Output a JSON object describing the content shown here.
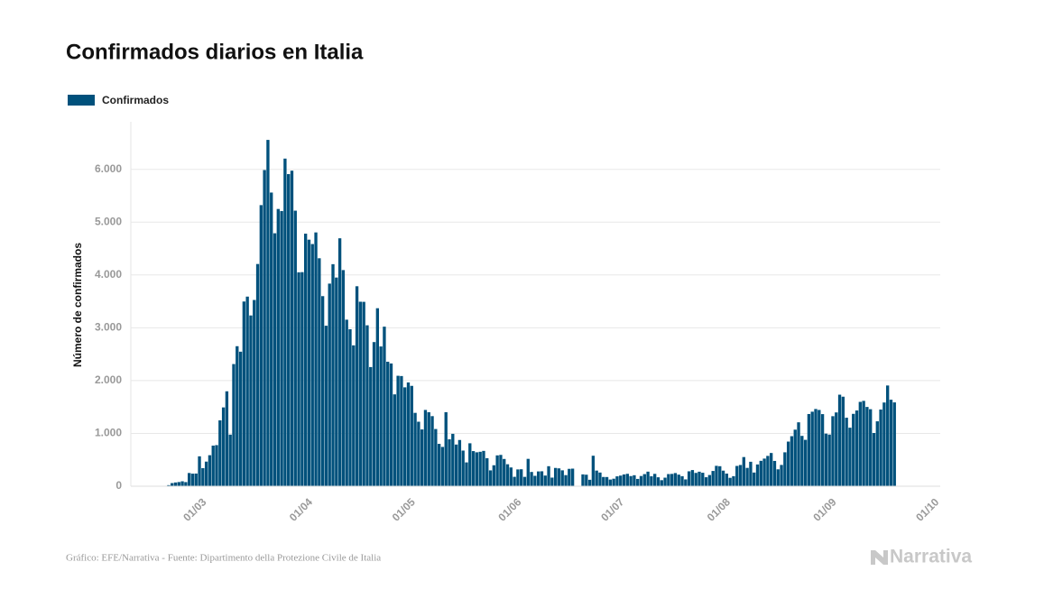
{
  "chart_data": {
    "type": "bar",
    "title": "Confirmados diarios en Italia",
    "y_label": "Número de confirmados",
    "source": "Gráfico: EFE/Narrativa - Fuente: Dipartimento della Protezione Civile de Italia",
    "brand": "Narrativa",
    "legend": "top-left",
    "grid": true,
    "ylim": [
      0,
      6900
    ],
    "yticks": [
      0,
      {
        "value": 1000,
        "label": "1.000"
      },
      {
        "value": 2000,
        "label": "2.000"
      },
      {
        "value": 3000,
        "label": "3.000"
      },
      {
        "value": 4000,
        "label": "4.000"
      },
      {
        "value": 5000,
        "label": "5.000"
      },
      {
        "value": 6000,
        "label": "6.000"
      }
    ],
    "xticks": [
      "01/03",
      "01/04",
      "01/05",
      "01/06",
      "01/07",
      "01/08",
      "01/09",
      "01/10"
    ],
    "categories": [
      "21/02",
      "22/02",
      "23/02",
      "24/02",
      "25/02",
      "26/02",
      "27/02",
      "28/02",
      "29/02",
      "01/03",
      "02/03",
      "03/03",
      "04/03",
      "05/03",
      "06/03",
      "07/03",
      "08/03",
      "09/03",
      "10/03",
      "11/03",
      "12/03",
      "13/03",
      "14/03",
      "15/03",
      "16/03",
      "17/03",
      "18/03",
      "19/03",
      "20/03",
      "21/03",
      "22/03",
      "23/03",
      "24/03",
      "25/03",
      "26/03",
      "27/03",
      "28/03",
      "29/03",
      "30/03",
      "31/03",
      "01/04",
      "02/04",
      "03/04",
      "04/04",
      "05/04",
      "06/04",
      "07/04",
      "08/04",
      "09/04",
      "10/04",
      "11/04",
      "12/04",
      "13/04",
      "14/04",
      "15/04",
      "16/04",
      "17/04",
      "18/04",
      "19/04",
      "20/04",
      "21/04",
      "22/04",
      "23/04",
      "24/04",
      "25/04",
      "26/04",
      "27/04",
      "28/04",
      "29/04",
      "30/04",
      "01/05",
      "02/05",
      "03/05",
      "04/05",
      "05/05",
      "06/05",
      "07/05",
      "08/05",
      "09/05",
      "10/05",
      "11/05",
      "12/05",
      "13/05",
      "14/05",
      "15/05",
      "16/05",
      "17/05",
      "18/05",
      "19/05",
      "20/05",
      "21/05",
      "22/05",
      "23/05",
      "24/05",
      "25/05",
      "26/05",
      "27/05",
      "28/05",
      "29/05",
      "30/05",
      "31/05",
      "01/06",
      "02/06",
      "03/06",
      "04/06",
      "05/06",
      "06/06",
      "07/06",
      "08/06",
      "09/06",
      "10/06",
      "11/06",
      "12/06",
      "13/06",
      "14/06",
      "15/06",
      "16/06",
      "17/06",
      "18/06",
      "19/06",
      "20/06",
      "21/06",
      "22/06",
      "23/06",
      "24/06",
      "25/06",
      "26/06",
      "27/06",
      "28/06",
      "29/06",
      "30/06",
      "01/07",
      "02/07",
      "03/07",
      "04/07",
      "05/07",
      "06/07",
      "07/07",
      "08/07",
      "09/07",
      "10/07",
      "11/07",
      "12/07",
      "13/07",
      "14/07",
      "15/07",
      "16/07",
      "17/07",
      "18/07",
      "19/07",
      "20/07",
      "21/07",
      "22/07",
      "23/07",
      "24/07",
      "25/07",
      "26/07",
      "27/07",
      "28/07",
      "29/07",
      "30/07",
      "31/07",
      "01/08",
      "02/08",
      "03/08",
      "04/08",
      "05/08",
      "06/08",
      "07/08",
      "08/08",
      "09/08",
      "10/08",
      "11/08",
      "12/08",
      "13/08",
      "14/08",
      "15/08",
      "16/08",
      "17/08",
      "18/08",
      "19/08",
      "20/08",
      "21/08",
      "22/08",
      "23/08",
      "24/08",
      "25/08",
      "26/08",
      "27/08",
      "28/08",
      "29/08",
      "30/08",
      "31/08",
      "01/09",
      "02/09",
      "03/09",
      "04/09",
      "05/09",
      "06/09",
      "07/09",
      "08/09",
      "09/09",
      "10/09",
      "11/09",
      "12/09",
      "13/09",
      "14/09",
      "15/09",
      "16/09",
      "17/09",
      "18/09",
      "19/09",
      "20/09"
    ],
    "series": [
      {
        "name": "Confirmados",
        "color": "#00517c",
        "values": [
          20,
          59,
          71,
          79,
          93,
          78,
          250,
          238,
          240,
          566,
          342,
          466,
          587,
          769,
          778,
          1247,
          1492,
          1797,
          977,
          2313,
          2651,
          2547,
          3497,
          3590,
          3233,
          3526,
          4207,
          5322,
          5986,
          6557,
          5560,
          4789,
          5249,
          5210,
          6203,
          5909,
          5974,
          5217,
          4050,
          4053,
          4782,
          4668,
          4585,
          4805,
          4316,
          3599,
          3039,
          3836,
          4204,
          3951,
          4694,
          4092,
          3153,
          2972,
          2667,
          3786,
          3493,
          3491,
          3047,
          2256,
          2729,
          3370,
          2646,
          3021,
          2357,
          2324,
          1739,
          2091,
          2086,
          1872,
          1965,
          1900,
          1389,
          1221,
          1075,
          1444,
          1401,
          1327,
          1083,
          802,
          744,
          1402,
          888,
          992,
          789,
          875,
          675,
          451,
          813,
          665,
          642,
          652,
          669,
          531,
          300,
          397,
          584,
          593,
          516,
          416,
          355,
          178,
          318,
          321,
          177,
          518,
          270,
          197,
          280,
          283,
          202,
          379,
          163,
          346,
          338,
          301,
          210,
          329,
          333,
          0,
          0,
          224,
          218,
          122,
          577,
          296,
          259,
          175,
          174,
          126,
          142,
          187,
          201,
          223,
          235,
          192,
          208,
          138,
          193,
          229,
          276,
          188,
          234,
          169,
          114,
          162,
          230,
          233,
          249,
          219,
          190,
          129,
          282,
          306,
          252,
          275,
          255,
          170,
          212,
          289,
          386,
          379,
          295,
          239,
          159,
          190,
          384,
          402,
          552,
          347,
          463,
          259,
          412,
          481,
          523,
          574,
          629,
          479,
          320,
          403,
          642,
          845,
          947,
          1071,
          1210,
          953,
          878,
          1367,
          1411,
          1462,
          1444,
          1365,
          996,
          978,
          1326,
          1397,
          1733,
          1695,
          1297,
          1108,
          1370,
          1434,
          1597,
          1616,
          1501,
          1458,
          1008,
          1229,
          1452,
          1585,
          1907,
          1638,
          1587
        ]
      }
    ]
  }
}
